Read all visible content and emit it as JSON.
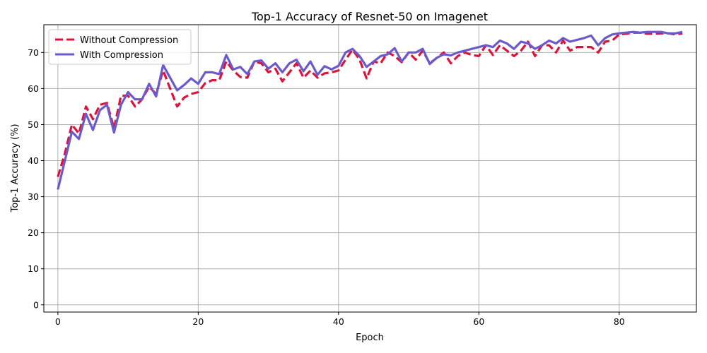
{
  "chart_data": {
    "type": "line",
    "title": "Top-1 Accuracy of Resnet-50 on Imagenet",
    "xlabel": "Epoch",
    "ylabel": "Top-1 Accuracy (%)",
    "xlim": [
      -2,
      91
    ],
    "ylim": [
      -2,
      77.7
    ],
    "xticks": [
      0,
      20,
      40,
      60,
      80
    ],
    "yticks": [
      0,
      10,
      20,
      30,
      40,
      50,
      60,
      70
    ],
    "grid": true,
    "legend_position": "top-left",
    "x": [
      0,
      1,
      2,
      3,
      4,
      5,
      6,
      7,
      8,
      9,
      10,
      11,
      12,
      13,
      14,
      15,
      16,
      17,
      18,
      19,
      20,
      21,
      22,
      23,
      24,
      25,
      26,
      27,
      28,
      29,
      30,
      31,
      32,
      33,
      34,
      35,
      36,
      37,
      38,
      39,
      40,
      41,
      42,
      43,
      44,
      45,
      46,
      47,
      48,
      49,
      50,
      51,
      52,
      53,
      54,
      55,
      56,
      57,
      58,
      59,
      60,
      61,
      62,
      63,
      64,
      65,
      66,
      67,
      68,
      69,
      70,
      71,
      72,
      73,
      74,
      75,
      76,
      77,
      78,
      79,
      80,
      81,
      82,
      83,
      84,
      85,
      86,
      87,
      88,
      89
    ],
    "series": [
      {
        "name": "Without Compression",
        "color": "#dc143c",
        "dash": true,
        "values": [
          35.5,
          42.0,
          50.0,
          47.5,
          55.0,
          51.5,
          55.5,
          56.0,
          49.0,
          58.0,
          58.0,
          55.0,
          57.0,
          60.5,
          58.5,
          65.0,
          60.0,
          55.0,
          57.5,
          58.5,
          59.0,
          61.5,
          62.3,
          62.3,
          67.5,
          65.0,
          63.2,
          63.0,
          67.5,
          67.0,
          64.5,
          65.5,
          62.0,
          64.5,
          67.0,
          63.0,
          65.0,
          63.0,
          64.2,
          64.5,
          65.0,
          68.0,
          70.8,
          68.0,
          62.8,
          67.5,
          67.0,
          70.0,
          69.0,
          67.3,
          70.0,
          68.0,
          70.5,
          67.0,
          68.5,
          70.0,
          67.0,
          69.0,
          70.0,
          69.3,
          69.0,
          72.0,
          69.3,
          72.0,
          70.5,
          69.0,
          70.5,
          73.0,
          69.0,
          72.0,
          72.0,
          70.0,
          73.3,
          70.5,
          71.5,
          71.5,
          71.5,
          70.0,
          73.0,
          73.3,
          75.0,
          75.2,
          75.5,
          75.5,
          75.2,
          75.2,
          75.3,
          75.3,
          75.0,
          75.3
        ]
      },
      {
        "name": "With Compression",
        "color": "#6a5acd",
        "dash": false,
        "values": [
          32.0,
          40.0,
          48.0,
          46.0,
          53.0,
          48.5,
          54.0,
          55.5,
          47.8,
          55.5,
          59.0,
          57.0,
          57.0,
          61.3,
          57.8,
          66.5,
          63.0,
          59.5,
          61.0,
          62.8,
          61.3,
          64.5,
          64.5,
          64.0,
          69.3,
          65.3,
          66.0,
          64.0,
          67.5,
          67.8,
          65.5,
          67.0,
          64.5,
          67.0,
          68.0,
          64.8,
          67.5,
          63.8,
          66.2,
          65.3,
          66.3,
          70.0,
          71.0,
          69.0,
          66.0,
          67.5,
          69.0,
          69.5,
          71.2,
          67.5,
          70.0,
          70.0,
          71.0,
          66.8,
          68.5,
          69.5,
          69.2,
          70.0,
          70.5,
          71.0,
          71.5,
          72.0,
          71.5,
          73.3,
          72.5,
          71.0,
          73.0,
          72.5,
          71.0,
          72.0,
          73.3,
          72.5,
          74.0,
          73.0,
          73.5,
          74.0,
          74.7,
          72.0,
          74.0,
          75.0,
          75.3,
          75.5,
          75.7,
          75.5,
          75.7,
          75.7,
          75.7,
          75.3,
          75.3,
          75.7
        ]
      }
    ]
  }
}
